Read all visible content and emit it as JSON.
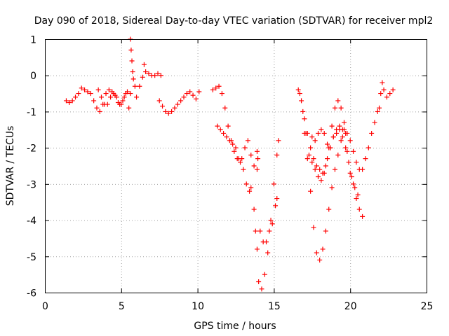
{
  "chart_data": {
    "type": "scatter",
    "title": "Day 090 of 2018, Sidereal Day-to-day VTEC variation (SDTVAR) for receiver mpl2",
    "xlabel": "GPS time / hours",
    "ylabel": "SDTVAR / TECUs",
    "xlim": [
      0,
      25
    ],
    "ylim": [
      -6,
      1
    ],
    "xticks": [
      "0",
      "5",
      "10",
      "15",
      "20",
      "25"
    ],
    "yticks": [
      "1",
      "0",
      "-1",
      "-2",
      "-3",
      "-4",
      "-5",
      "-6"
    ],
    "grid": true,
    "marker": "plus",
    "series_color": "#ff0000",
    "series": [
      {
        "x": [
          1.4,
          1.6,
          1.8,
          2.0,
          2.2,
          2.4,
          2.6,
          2.8,
          3.0,
          3.2,
          3.4,
          3.6,
          3.8,
          4.0,
          4.2,
          4.4,
          4.6,
          4.8,
          5.0,
          5.2,
          5.4,
          5.6,
          3.5,
          3.7,
          3.9,
          4.1,
          4.3,
          4.5,
          4.7,
          4.9,
          5.1,
          5.3,
          5.5,
          5.6,
          5.65,
          5.7,
          5.75,
          5.8,
          5.9,
          6.0,
          6.2,
          6.4,
          6.6,
          6.8,
          7.0,
          7.2,
          7.4,
          7.6,
          6.5,
          7.5,
          7.7,
          7.9,
          8.1,
          8.3,
          8.5,
          8.7,
          8.9,
          9.1,
          9.3,
          9.5,
          9.7,
          9.9,
          10.1
        ],
        "y": [
          -0.7,
          -0.75,
          -0.7,
          -0.6,
          -0.5,
          -0.35,
          -0.4,
          -0.45,
          -0.5,
          -0.7,
          -0.9,
          -1.0,
          -0.8,
          -0.5,
          -0.4,
          -0.45,
          -0.55,
          -0.75,
          -0.8,
          -0.6,
          -0.45,
          -0.5,
          -0.4,
          -0.6,
          -0.8,
          -0.8,
          -0.6,
          -0.5,
          -0.6,
          -0.8,
          -0.7,
          -0.5,
          -0.9,
          1.0,
          0.7,
          0.4,
          0.1,
          -0.1,
          -0.3,
          -0.6,
          -0.3,
          -0.05,
          0.1,
          0.05,
          0.0,
          0.0,
          0.05,
          0.0,
          0.3,
          -0.7,
          -0.85,
          -1.0,
          -1.05,
          -1.0,
          -0.9,
          -0.8,
          -0.7,
          -0.6,
          -0.5,
          -0.45,
          -0.55,
          -0.65,
          -0.45
        ]
      },
      {
        "x": [
          11.0,
          11.2,
          11.4,
          11.6,
          11.8,
          12.0,
          12.2,
          12.4,
          12.6,
          12.8,
          13.0,
          13.2,
          13.4,
          13.5,
          11.3,
          11.5,
          11.7,
          11.9,
          12.1,
          12.3,
          12.5,
          12.7,
          12.9,
          13.1,
          13.3,
          13.5,
          13.7,
          13.9,
          13.7,
          13.8,
          13.9,
          14.0,
          14.2,
          14.4,
          14.6,
          14.8,
          15.0,
          15.2,
          15.3,
          14.1,
          14.3,
          14.5,
          14.7,
          14.9,
          15.1,
          15.2,
          13.9,
          13.95
        ],
        "y": [
          -0.4,
          -0.35,
          -0.3,
          -0.5,
          -0.9,
          -1.4,
          -1.8,
          -2.1,
          -2.3,
          -2.4,
          -2.6,
          -3.0,
          -3.2,
          -3.1,
          -1.4,
          -1.5,
          -1.6,
          -1.7,
          -1.8,
          -1.9,
          -2.0,
          -2.3,
          -2.3,
          -2.0,
          -1.8,
          -2.2,
          -2.5,
          -2.6,
          -3.7,
          -4.3,
          -4.8,
          -5.7,
          -5.9,
          -5.5,
          -4.9,
          -4.0,
          -3.0,
          -2.2,
          -1.8,
          -4.3,
          -4.6,
          -4.6,
          -4.3,
          -4.1,
          -3.6,
          -3.4,
          -2.1,
          -2.3
        ]
      },
      {
        "x": [
          16.6,
          16.8,
          17.0,
          17.2,
          17.4,
          17.6,
          17.8,
          18.0,
          18.2,
          18.4,
          18.6,
          18.8,
          19.0,
          19.2,
          19.4,
          19.6,
          19.8,
          20.0,
          20.2,
          20.4,
          20.6,
          20.8,
          16.7,
          16.9,
          17.1,
          17.3,
          17.5,
          17.7,
          17.9,
          18.1,
          18.3,
          18.5,
          18.7,
          18.9,
          19.1,
          19.3,
          19.5,
          19.7,
          19.9,
          20.1,
          20.3,
          20.5,
          17.0,
          17.2,
          17.4,
          17.6,
          17.8,
          18.0,
          18.2,
          18.4,
          18.6,
          18.8,
          19.0,
          19.2,
          19.4,
          19.6,
          19.8,
          20.0,
          20.2,
          20.4,
          20.6,
          20.8,
          21.0,
          21.2,
          21.4,
          21.6,
          21.8,
          17.5,
          17.7,
          17.9,
          18.1,
          18.3,
          18.5,
          18.7,
          18.9,
          19.1,
          19.3,
          19.5,
          19.7,
          21.9,
          22.0,
          22.1,
          22.2,
          22.4,
          22.6,
          22.8
        ],
        "y": [
          -0.4,
          -0.7,
          -1.2,
          -1.6,
          -2.0,
          -2.3,
          -2.5,
          -2.6,
          -2.7,
          -2.5,
          -2.0,
          -1.4,
          -0.9,
          -0.7,
          -0.9,
          -1.3,
          -2.1,
          -2.7,
          -3.0,
          -3.4,
          -3.7,
          -3.9,
          -0.5,
          -1.0,
          -1.6,
          -2.2,
          -2.4,
          -2.6,
          -2.8,
          -2.9,
          -2.7,
          -2.3,
          -2.0,
          -1.7,
          -1.6,
          -1.5,
          -1.7,
          -2.0,
          -2.4,
          -2.8,
          -3.1,
          -3.3,
          -1.6,
          -2.3,
          -3.2,
          -4.2,
          -4.9,
          -5.1,
          -4.8,
          -4.3,
          -3.7,
          -3.1,
          -2.6,
          -2.2,
          -1.8,
          -1.5,
          -1.6,
          -1.8,
          -2.1,
          -2.4,
          -2.6,
          -2.6,
          -2.3,
          -2.0,
          -1.6,
          -1.3,
          -1.0,
          -1.7,
          -1.8,
          -1.6,
          -1.5,
          -1.6,
          -1.9,
          -2.0,
          -1.7,
          -1.5,
          -1.4,
          -1.5,
          -1.6,
          -0.9,
          -0.5,
          -0.2,
          -0.4,
          -0.6,
          -0.5,
          -0.4
        ]
      }
    ]
  }
}
